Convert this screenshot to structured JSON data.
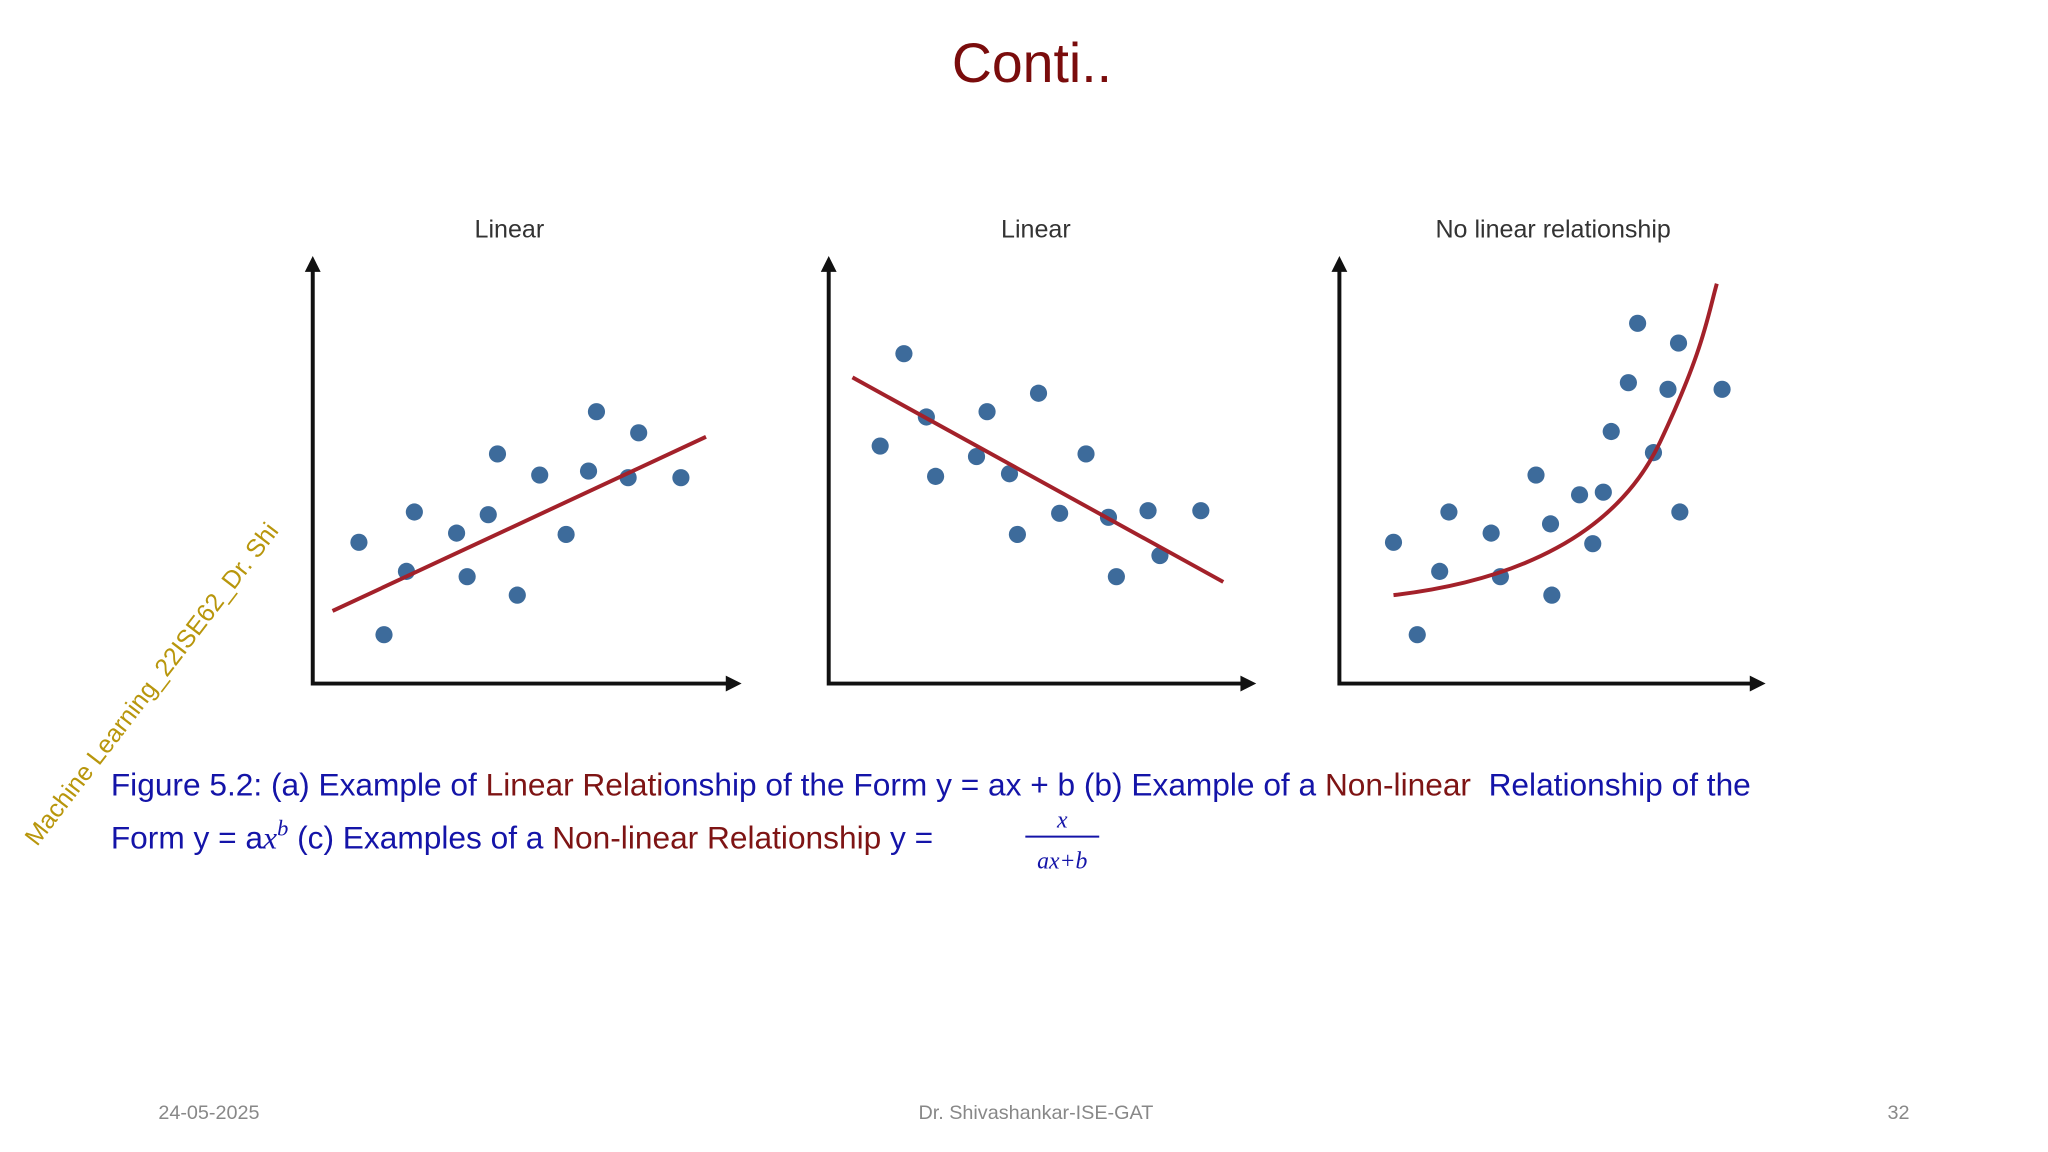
{
  "header": {
    "title": "Conti.."
  },
  "figure": {
    "panels": [
      {
        "title": "Linear"
      },
      {
        "title": "Linear"
      },
      {
        "title": "No linear relationship"
      }
    ]
  },
  "caption": {
    "line1": [
      "Figure 5.2: (a) Example of ",
      "Linear Relati",
      "onship of the Form y = ax + b (b) Example of a ",
      "Non-linear",
      "  Relationship of the"
    ],
    "line2": [
      "Form y = a",
      "x",
      "b",
      " (c) Examples of a ",
      "Non-linear Relationship",
      " y =",
      "x",
      "ax+b"
    ]
  },
  "watermark": "Machine Learning_22ISE62_Dr. Shi",
  "footer": {
    "date": "24-05-2025",
    "author": "Dr. Shivashankar-ISE-GAT",
    "page": "32"
  }
}
